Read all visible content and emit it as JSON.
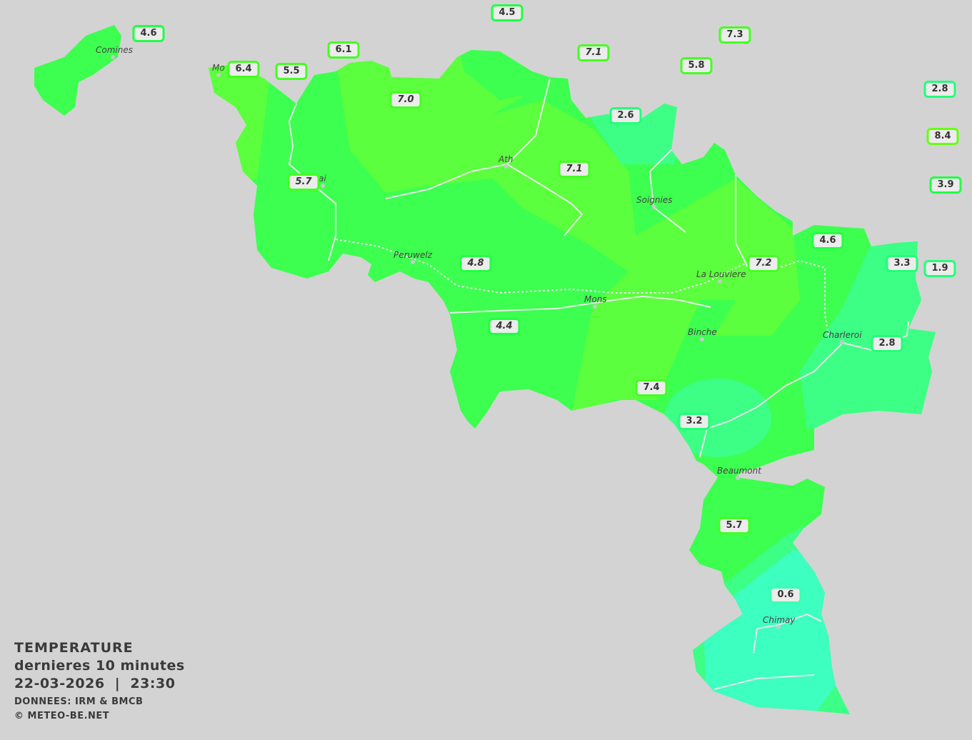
{
  "legend": {
    "title": "TEMPERATURE",
    "subtitle": "dernieres 10 minutes",
    "datetime": "22-03-2026  |  23:30",
    "source": "DONNEES: IRM & BMCB",
    "copyright": "© METEO-BE.NET"
  },
  "colors": {
    "background": "#d3d3d3",
    "zone_green": "#3dff4f",
    "zone_yellow_green": "#5cff3d",
    "zone_teal": "#3dff86",
    "zone_cyan": "#3dffc0",
    "label_bg": "#ececec",
    "label_text": "#333333"
  },
  "cities": [
    "Comines",
    "Mo",
    "ai",
    "Ath",
    "Soignies",
    "Peruwelz",
    "Mons",
    "La Louviere",
    "Binche",
    "Charleroi",
    "Beaumont",
    "Chimay"
  ],
  "stations": [
    "4.5",
    "4.6",
    "6.1",
    "7.3",
    "7.1",
    "5.8",
    "6.4",
    "5.5",
    "2.8",
    "7.0",
    "2.6",
    "8.4",
    "7.1",
    "5.7",
    "3.9",
    "4.6",
    "7.2",
    "3.3",
    "4.8",
    "1.9",
    "4.4",
    "2.8",
    "7.4",
    "3.2",
    "5.7",
    "0.6"
  ]
}
